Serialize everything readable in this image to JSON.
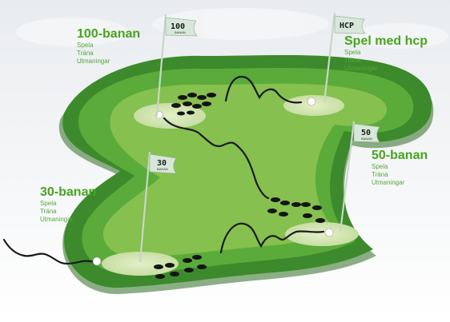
{
  "menus": [
    {
      "title": "100-banan",
      "items": [
        "Spela",
        "Träna",
        "Utmaningar"
      ]
    },
    {
      "title": "Spel med hcp",
      "items": [
        "Spela",
        "Träna",
        "Utmaningar"
      ]
    },
    {
      "title": "50-banan",
      "items": [
        "Spela",
        "Träna",
        "Utmaningar"
      ]
    },
    {
      "title": "30-banan",
      "items": [
        "Spela",
        "Träna",
        "Utmaningar"
      ]
    }
  ],
  "flags": [
    {
      "label": "100",
      "sub": "BANAN"
    },
    {
      "label": "HCP",
      "sub": ""
    },
    {
      "label": "50",
      "sub": "BANAN"
    },
    {
      "label": "30",
      "sub": "BANAN"
    }
  ],
  "colors": {
    "course_outer": "#3f8f2e",
    "course_mid": "#5fae3c",
    "course_inner": "#88c24f",
    "green_center": "#d3e6b1",
    "menu_text": "#46a51e",
    "flag": "#d7e8da"
  }
}
